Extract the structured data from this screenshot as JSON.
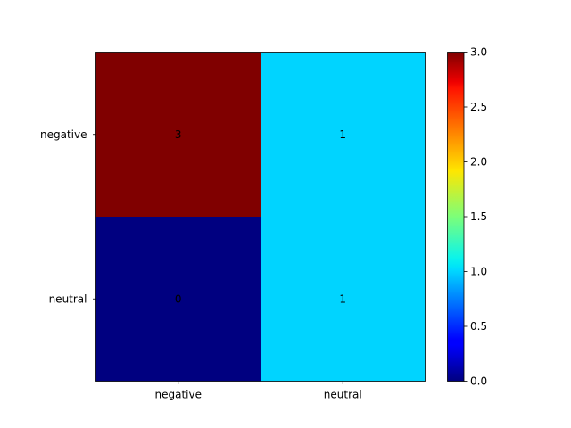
{
  "chart_data": {
    "type": "heatmap",
    "x_categories": [
      "negative",
      "neutral"
    ],
    "y_categories": [
      "negative",
      "neutral"
    ],
    "values": [
      [
        3,
        1
      ],
      [
        0,
        1
      ]
    ],
    "colormap": "jet",
    "colorbar": {
      "min": 0.0,
      "max": 3.0,
      "ticks": [
        "0.0",
        "0.5",
        "1.0",
        "1.5",
        "2.0",
        "2.5",
        "3.0"
      ]
    },
    "title": "",
    "xlabel": "",
    "ylabel": ""
  }
}
